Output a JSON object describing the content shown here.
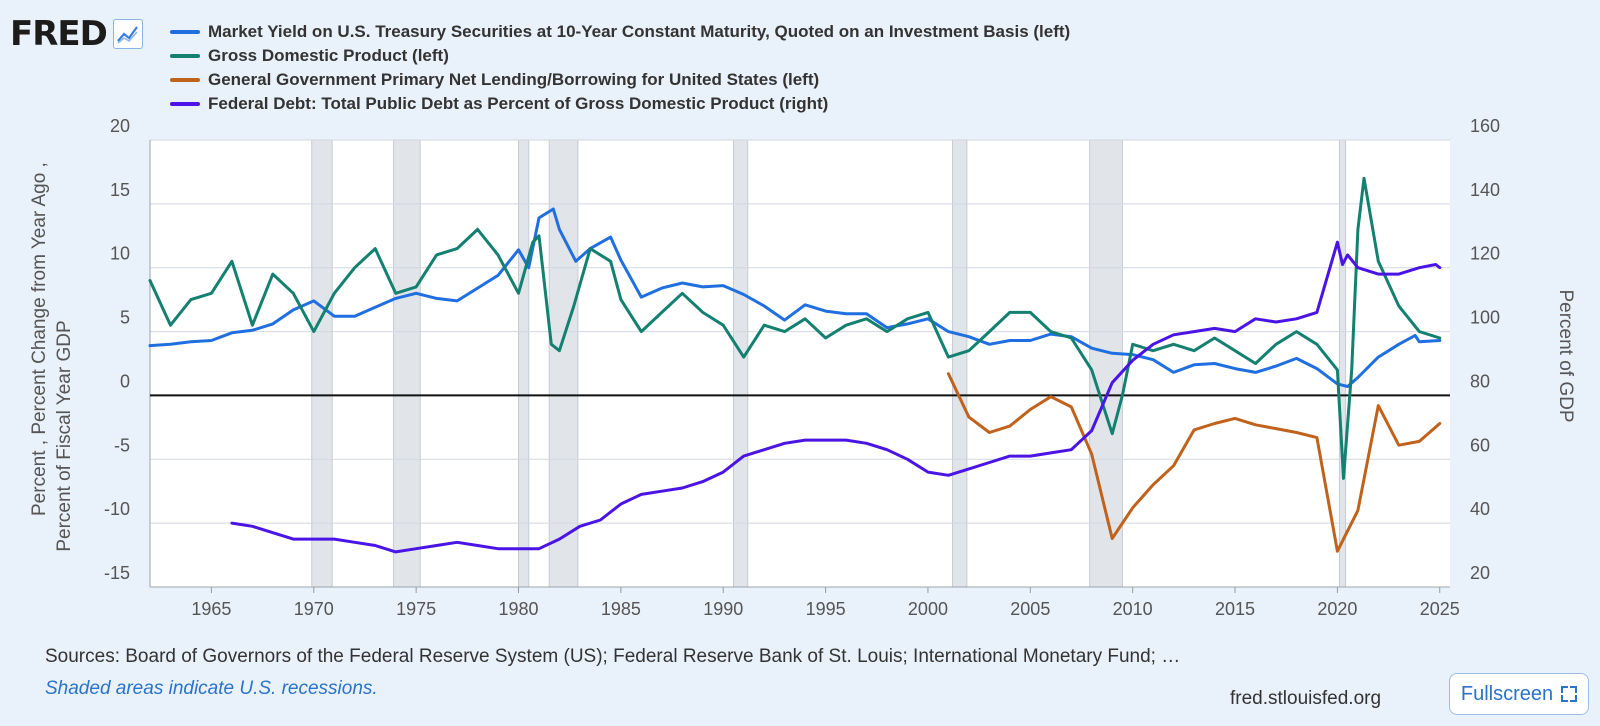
{
  "logo": {
    "text": "FRED",
    "icon": "line-chart-icon"
  },
  "legend": [
    {
      "label": "Market Yield on U.S. Treasury Securities at 10-Year Constant Maturity, Quoted on an Investment Basis (left)",
      "color": "#1f6fe0"
    },
    {
      "label": "Gross Domestic Product (left)",
      "color": "#138070"
    },
    {
      "label": "General Government Primary Net Lending/Borrowing for United States (left)",
      "color": "#c0621b"
    },
    {
      "label": "Federal Debt: Total Public Debt as Percent of Gross Domestic Product (right)",
      "color": "#4a14e6"
    }
  ],
  "axes": {
    "left_label_line1": "Percent , Percent Change from Year Ago ,",
    "left_label_line2": "Percent of Fiscal Year GDP",
    "right_label": "Percent of GDP"
  },
  "footer": {
    "sources": "Sources: Board of Governors of the Federal Reserve System (US); Federal Reserve Bank of St. Louis; International Monetary Fund; U.S. Bureau of Econo...",
    "note": "Shaded areas indicate U.S. recessions.",
    "site": "fred.stlouisfed.org",
    "fullscreen_label": "Fullscreen"
  },
  "chart_data": {
    "type": "line",
    "xlim": [
      1962,
      2025.5
    ],
    "x_ticks": [
      1965,
      1970,
      1975,
      1980,
      1985,
      1990,
      1995,
      2000,
      2005,
      2010,
      2015,
      2020,
      2025
    ],
    "ylim_left": [
      -15,
      20
    ],
    "y_ticks_left": [
      20,
      15,
      10,
      5,
      0,
      -5,
      -10,
      -15
    ],
    "ylim_right": [
      20,
      160
    ],
    "y_ticks_right": [
      160,
      140,
      120,
      100,
      80,
      60,
      40,
      20
    ],
    "grid": true,
    "zero_line": true,
    "recessions": [
      [
        1969.9,
        1970.9
      ],
      [
        1973.9,
        1975.2
      ],
      [
        1980.0,
        1980.5
      ],
      [
        1981.5,
        1982.9
      ],
      [
        1990.5,
        1991.2
      ],
      [
        2001.2,
        2001.9
      ],
      [
        2007.9,
        2009.5
      ],
      [
        2020.1,
        2020.4
      ]
    ],
    "series": [
      {
        "name": "Market Yield on U.S. Treasury Securities at 10-Year Constant Maturity, Quoted on an Investment Basis (left)",
        "axis": "left",
        "color": "#1f6fe0",
        "x": [
          1962,
          1963,
          1964,
          1965,
          1966,
          1967,
          1968,
          1969,
          1970,
          1971,
          1972,
          1973,
          1974,
          1975,
          1976,
          1977,
          1978,
          1979,
          1980,
          1980.5,
          1981,
          1981.7,
          1982,
          1982.8,
          1983.5,
          1984.5,
          1985,
          1986,
          1987,
          1988,
          1989,
          1990,
          1991,
          1992,
          1993,
          1994,
          1995,
          1996,
          1997,
          1998,
          1999,
          2000,
          2001,
          2002,
          2003,
          2004,
          2005,
          2006,
          2007,
          2008,
          2009,
          2010,
          2011,
          2012,
          2013,
          2014,
          2015,
          2016,
          2017,
          2018,
          2019,
          2020,
          2020.5,
          2021,
          2022,
          2023,
          2023.8,
          2024,
          2025
        ],
        "values": [
          3.9,
          4.0,
          4.2,
          4.3,
          4.9,
          5.1,
          5.6,
          6.7,
          7.4,
          6.2,
          6.2,
          6.9,
          7.6,
          8.0,
          7.6,
          7.4,
          8.4,
          9.4,
          11.4,
          10.0,
          13.9,
          14.6,
          13.0,
          10.5,
          11.5,
          12.4,
          10.6,
          7.7,
          8.4,
          8.8,
          8.5,
          8.6,
          7.9,
          7.0,
          5.9,
          7.1,
          6.6,
          6.4,
          6.4,
          5.3,
          5.6,
          6.0,
          5.0,
          4.6,
          4.0,
          4.3,
          4.3,
          4.8,
          4.6,
          3.7,
          3.3,
          3.2,
          2.8,
          1.8,
          2.4,
          2.5,
          2.1,
          1.8,
          2.3,
          2.9,
          2.1,
          0.9,
          0.7,
          1.4,
          3.0,
          4.0,
          4.7,
          4.2,
          4.3
        ]
      },
      {
        "name": "Gross Domestic Product (left)",
        "axis": "left",
        "color": "#138070",
        "x": [
          1962,
          1963,
          1964,
          1965,
          1966,
          1967,
          1968,
          1969,
          1970,
          1971,
          1972,
          1973,
          1974,
          1975,
          1976,
          1977,
          1978,
          1979,
          1980,
          1980.7,
          1981,
          1981.6,
          1982,
          1982.7,
          1983.5,
          1984.5,
          1985,
          1986,
          1987,
          1988,
          1989,
          1990,
          1991,
          1992,
          1993,
          1994,
          1995,
          1996,
          1997,
          1998,
          1999,
          2000,
          2001,
          2002,
          2003,
          2004,
          2005,
          2006,
          2007,
          2008,
          2009,
          2009.5,
          2010,
          2011,
          2012,
          2013,
          2014,
          2015,
          2016,
          2017,
          2018,
          2019,
          2020,
          2020.3,
          2020.7,
          2021,
          2021.3,
          2022,
          2023,
          2024,
          2025
        ],
        "values": [
          9.0,
          5.5,
          7.5,
          8.0,
          10.5,
          5.5,
          9.5,
          8.0,
          5.0,
          8.0,
          10.0,
          11.5,
          8.0,
          8.5,
          11.0,
          11.5,
          13.0,
          11.0,
          8.0,
          12.0,
          12.5,
          4.0,
          3.5,
          7.0,
          11.5,
          10.5,
          7.5,
          5.0,
          6.5,
          8.0,
          6.5,
          5.5,
          3.0,
          5.5,
          5.0,
          6.0,
          4.5,
          5.5,
          6.0,
          5.0,
          6.0,
          6.5,
          3.0,
          3.5,
          5.0,
          6.5,
          6.5,
          5.0,
          4.5,
          2.0,
          -3.0,
          0.0,
          4.0,
          3.5,
          4.0,
          3.5,
          4.5,
          3.5,
          2.5,
          4.0,
          5.0,
          4.0,
          2.0,
          -6.5,
          2.0,
          13.0,
          17.0,
          10.5,
          7.0,
          5.0,
          4.5
        ]
      },
      {
        "name": "General Government Primary Net Lending/Borrowing for United States (left)",
        "axis": "left",
        "color": "#c0621b",
        "x": [
          2001,
          2002,
          2003,
          2004,
          2005,
          2006,
          2007,
          2008,
          2009,
          2010,
          2011,
          2012,
          2013,
          2014,
          2015,
          2016,
          2017,
          2018,
          2019,
          2020,
          2021,
          2022,
          2023,
          2024,
          2025
        ],
        "values": [
          1.7,
          -1.7,
          -2.9,
          -2.4,
          -1.1,
          -0.1,
          -0.9,
          -4.6,
          -11.2,
          -8.8,
          -7.0,
          -5.5,
          -2.7,
          -2.2,
          -1.8,
          -2.3,
          -2.6,
          -2.9,
          -3.3,
          -12.2,
          -9.0,
          -0.8,
          -3.9,
          -3.6,
          -2.2
        ]
      },
      {
        "name": "Federal Debt: Total Public Debt as Percent of Gross Domestic Product (right)",
        "axis": "right",
        "color": "#4a14e6",
        "x": [
          1966,
          1967,
          1968,
          1969,
          1970,
          1971,
          1972,
          1973,
          1974,
          1975,
          1976,
          1977,
          1978,
          1979,
          1980,
          1981,
          1982,
          1983,
          1984,
          1985,
          1986,
          1987,
          1988,
          1989,
          1990,
          1991,
          1992,
          1993,
          1994,
          1995,
          1996,
          1997,
          1998,
          1999,
          2000,
          2001,
          2002,
          2003,
          2004,
          2005,
          2006,
          2007,
          2008,
          2009,
          2010,
          2011,
          2012,
          2013,
          2014,
          2015,
          2016,
          2017,
          2018,
          2019,
          2020,
          2020.25,
          2020.5,
          2021,
          2022,
          2023,
          2024,
          2024.8,
          2025
        ],
        "values": [
          40,
          39,
          37,
          35,
          35,
          35,
          34,
          33,
          31,
          32,
          33,
          34,
          33,
          32,
          32,
          32,
          35,
          39,
          41,
          46,
          49,
          50,
          51,
          53,
          56,
          61,
          63,
          65,
          66,
          66,
          66,
          65,
          63,
          60,
          56,
          55,
          57,
          59,
          61,
          61,
          62,
          63,
          69,
          84,
          91,
          96,
          99,
          100,
          101,
          100,
          104,
          103,
          104,
          106,
          128,
          121,
          124,
          120,
          118,
          118,
          120,
          121,
          120
        ]
      }
    ]
  }
}
